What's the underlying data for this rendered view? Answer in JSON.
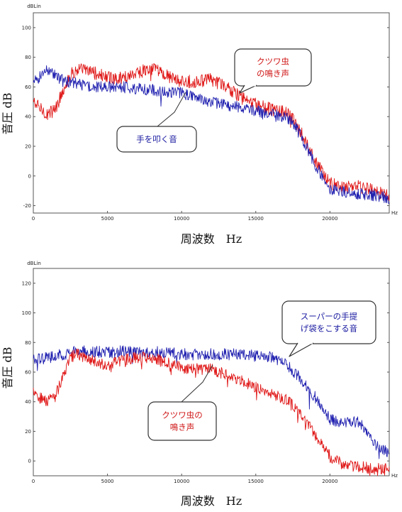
{
  "chart_data": [
    {
      "type": "line",
      "yunit": "dBLin",
      "xunit": "Hz",
      "xlabel": "周波数　Hz",
      "ylabel": "音圧 dB",
      "xlim": [
        0,
        24000
      ],
      "ylim": [
        -25,
        110
      ],
      "xticks": [
        0,
        5000,
        10000,
        15000,
        20000
      ],
      "xtick_labels": [
        "0",
        "5000",
        "10000",
        "15000",
        "20000"
      ],
      "yticks": [
        100,
        80,
        60,
        40,
        20,
        0,
        -20
      ],
      "ytick_labels": [
        "100",
        "80",
        "60",
        "40",
        "20",
        "0",
        "-20"
      ],
      "series": [
        {
          "name": "クツワ虫の鳴き声",
          "color": "#e01818",
          "x": [
            0,
            500,
            1000,
            1500,
            2000,
            2500,
            3000,
            4000,
            5000,
            6000,
            7000,
            8000,
            9000,
            10000,
            11000,
            12000,
            13000,
            14000,
            15000,
            16000,
            17000,
            17500,
            18000,
            18500,
            19000,
            20000,
            21000,
            22000,
            23000,
            24000
          ],
          "y": [
            50,
            45,
            42,
            45,
            58,
            68,
            72,
            70,
            66,
            66,
            70,
            72,
            68,
            63,
            64,
            65,
            60,
            53,
            48,
            45,
            43,
            38,
            30,
            20,
            10,
            -5,
            -8,
            -7,
            -10,
            -14
          ]
        },
        {
          "name": "手を叩く音",
          "color": "#2020b0",
          "x": [
            0,
            500,
            1000,
            2000,
            3000,
            4000,
            5000,
            6000,
            7000,
            8000,
            9000,
            10000,
            11000,
            12000,
            13000,
            14000,
            15000,
            16000,
            17000,
            17500,
            18000,
            18500,
            19000,
            20000,
            21000,
            22000,
            23000,
            24000
          ],
          "y": [
            62,
            68,
            72,
            64,
            62,
            60,
            60,
            60,
            59,
            58,
            57,
            56,
            53,
            50,
            48,
            46,
            44,
            42,
            40,
            35,
            28,
            18,
            8,
            -9,
            -11,
            -12,
            -13,
            -15
          ]
        }
      ],
      "annotations": [
        {
          "text": [
            "クツワ虫",
            "の鳴き声"
          ],
          "color": "#d01818",
          "target": [
            10700,
            64
          ]
        },
        {
          "text": [
            "手を叩く音"
          ],
          "color": "#1818a0",
          "target": [
            10500,
            56
          ]
        }
      ]
    },
    {
      "type": "line",
      "yunit": "dBLin",
      "xunit": "Hz",
      "xlabel": "周波数　Hz",
      "ylabel": "音圧 dB",
      "xlim": [
        0,
        24000
      ],
      "ylim": [
        -10,
        130
      ],
      "xticks": [
        0,
        5000,
        10000,
        15000,
        20000
      ],
      "xtick_labels": [
        "0",
        "5000",
        "10000",
        "15000",
        "20000"
      ],
      "yticks": [
        120,
        100,
        80,
        60,
        40,
        20,
        0
      ],
      "ytick_labels": [
        "120",
        "100",
        "80",
        "60",
        "40",
        "20",
        "0"
      ],
      "series": [
        {
          "name": "スーパーの手提げ袋をこする音",
          "color": "#2020b0",
          "x": [
            0,
            1000,
            2000,
            3000,
            4000,
            5000,
            6000,
            7000,
            8000,
            9000,
            10000,
            11000,
            12000,
            13000,
            14000,
            15000,
            16000,
            17000,
            18000,
            19000,
            20000,
            21000,
            22000,
            23000,
            24000
          ],
          "y": [
            68,
            70,
            72,
            74,
            74,
            73,
            74,
            73,
            74,
            73,
            72,
            72,
            72,
            72,
            72,
            71,
            70,
            66,
            56,
            43,
            28,
            26,
            26,
            12,
            5
          ]
        },
        {
          "name": "クツワ虫の鳴き声",
          "color": "#e01818",
          "x": [
            0,
            500,
            1000,
            1500,
            2000,
            2500,
            3000,
            4000,
            5000,
            6000,
            7000,
            8000,
            9000,
            10000,
            11000,
            12000,
            13000,
            14000,
            15000,
            16000,
            17000,
            18000,
            19000,
            20000,
            21000,
            22000,
            23000,
            24000
          ],
          "y": [
            48,
            42,
            40,
            44,
            58,
            70,
            72,
            68,
            64,
            68,
            70,
            70,
            66,
            63,
            62,
            62,
            58,
            54,
            50,
            46,
            42,
            32,
            18,
            3,
            -3,
            -4,
            -5,
            -6
          ]
        }
      ],
      "annotations": [
        {
          "text": [
            "スーパーの手提",
            "げ袋をこする音"
          ],
          "color": "#1818a0",
          "target": [
            17000,
            70
          ]
        },
        {
          "text": [
            "クツワ虫の",
            "鳴き声"
          ],
          "color": "#d01818",
          "target": [
            12000,
            66
          ]
        }
      ]
    }
  ]
}
